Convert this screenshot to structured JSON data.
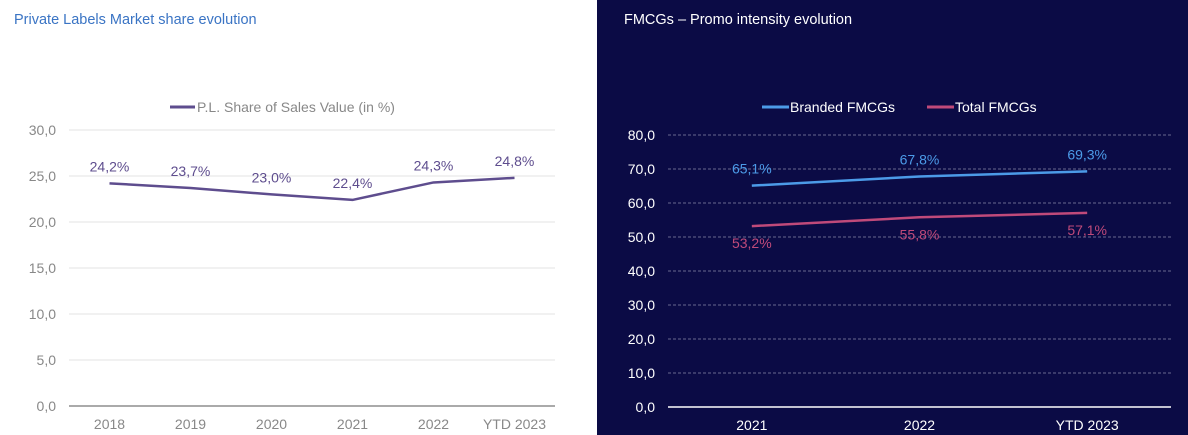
{
  "left_panel": {
    "title": "Private Labels Market share evolution"
  },
  "right_panel": {
    "title": "FMCGs – Promo intensity evolution"
  },
  "colors": {
    "left_series": "#5e4d8e",
    "left_axis_text": "#888888",
    "left_grid": "#e3e3e3",
    "right_background": "#0b0b45",
    "branded": "#4c9be8",
    "total": "#c04a7a",
    "right_text": "#ffffff",
    "right_grid": "#8a8aa8"
  },
  "chart_data": [
    {
      "type": "line",
      "categories": [
        "2018",
        "2019",
        "2020",
        "2021",
        "2022",
        "YTD 2023"
      ],
      "series": [
        {
          "name": "P.L. Share of Sales Value (in %)",
          "values": [
            24.2,
            23.7,
            23.0,
            22.4,
            24.3,
            24.8
          ],
          "labels": [
            "24,2%",
            "23,7%",
            "23,0%",
            "22,4%",
            "24,3%",
            "24,8%"
          ]
        }
      ],
      "ylim": [
        0,
        30
      ],
      "yticks": [
        "0,0",
        "5,0",
        "10,0",
        "15,0",
        "20,0",
        "25,0",
        "30,0"
      ],
      "grid": true,
      "legend": "top"
    },
    {
      "type": "line",
      "categories": [
        "2021",
        "2022",
        "YTD 2023"
      ],
      "series": [
        {
          "name": "Branded FMCGs",
          "values": [
            65.1,
            67.8,
            69.3
          ],
          "labels": [
            "65,1%",
            "67,8%",
            "69,3%"
          ]
        },
        {
          "name": "Total FMCGs",
          "values": [
            53.2,
            55.8,
            57.1
          ],
          "labels": [
            "53,2%",
            "55,8%",
            "57,1%"
          ]
        }
      ],
      "ylim": [
        0,
        80
      ],
      "yticks": [
        "0,0",
        "10,0",
        "20,0",
        "30,0",
        "40,0",
        "50,0",
        "60,0",
        "70,0",
        "80,0"
      ],
      "grid": true,
      "legend": "top"
    }
  ]
}
